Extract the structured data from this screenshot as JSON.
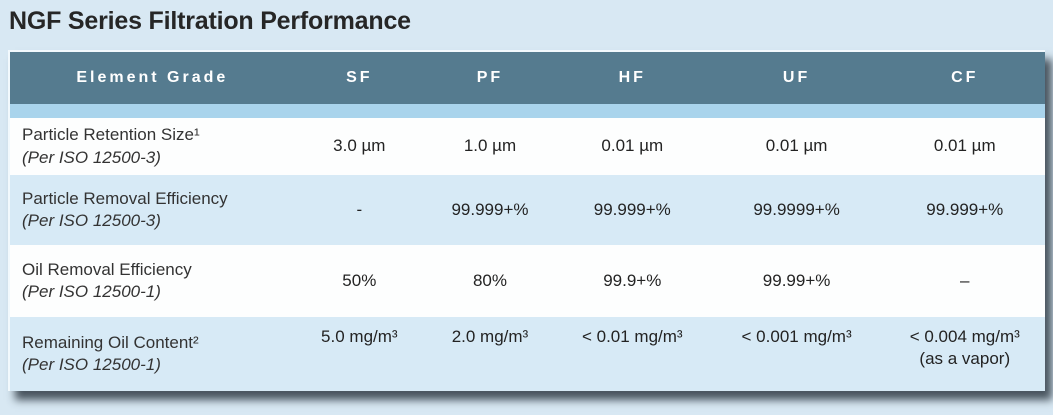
{
  "title": "NGF Series Filtration Performance",
  "table": {
    "columns": [
      "Element Grade",
      "SF",
      "PF",
      "HF",
      "UF",
      "CF"
    ],
    "rows": [
      {
        "label": "Particle Retention Size¹",
        "label_note": "(Per ISO 12500-3)",
        "values": [
          {
            "main": "3.0 µm"
          },
          {
            "main": "1.0 µm"
          },
          {
            "main": "0.01 µm"
          },
          {
            "main": "0.01 µm"
          },
          {
            "main": "0.01 µm"
          }
        ]
      },
      {
        "label": "Particle Removal Efficiency",
        "label_note": "(Per ISO 12500-3)",
        "values": [
          {
            "main": "-"
          },
          {
            "main": "99.999+%"
          },
          {
            "main": "99.999+%"
          },
          {
            "main": "99.9999+%"
          },
          {
            "main": "99.999+%"
          }
        ]
      },
      {
        "label": "Oil Removal Efficiency",
        "label_note": "(Per ISO 12500-1)",
        "values": [
          {
            "main": "50%"
          },
          {
            "main": "80%"
          },
          {
            "main": "99.9+%"
          },
          {
            "main": "99.99+%"
          },
          {
            "main": "–"
          }
        ]
      },
      {
        "label": "Remaining Oil Content²",
        "label_note": "(Per ISO 12500-1)",
        "values": [
          {
            "main": "5.0 mg/m³"
          },
          {
            "main": "2.0 mg/m³"
          },
          {
            "main": "< 0.01 mg/m³"
          },
          {
            "main": "< 0.001 mg/m³"
          },
          {
            "main": "< 0.004 mg/m³",
            "sub": "(as a vapor)"
          }
        ]
      }
    ]
  },
  "colors": {
    "page_background": "#d8e8f3",
    "header_background": "#557b8f",
    "band_background": "#a9d4ec",
    "row_blue": "#d7eaf6",
    "row_white": "#fdfefe",
    "title_text": "#262626",
    "header_text": "#ffffff",
    "shadow": "#2a343e"
  }
}
